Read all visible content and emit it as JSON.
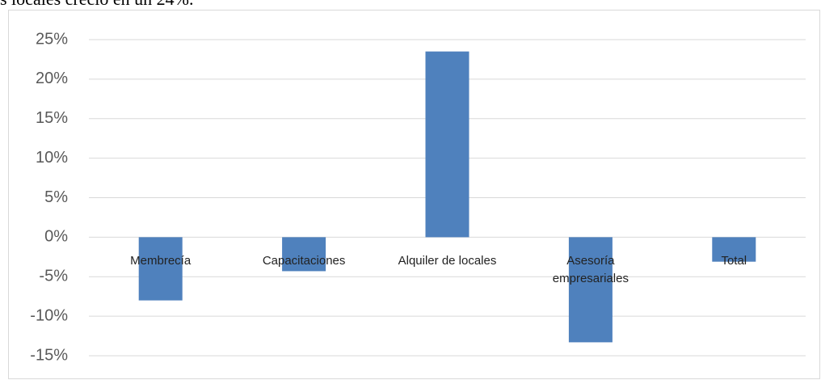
{
  "header_text": "s locales creció en un 24%.",
  "chart_data": {
    "type": "bar",
    "categories": [
      "Membrecía",
      "Capacitaciones",
      "Alquiler de locales",
      "Asesoría empresariales",
      "Total"
    ],
    "values": [
      -8,
      -4.3,
      23.5,
      -13.3,
      -3.1
    ],
    "color": "#4f81bd",
    "ylim": [
      -15,
      25
    ],
    "yticks": [
      {
        "value": -15,
        "label": "-15%"
      },
      {
        "value": -10,
        "label": "-10%"
      },
      {
        "value": -5,
        "label": "-5%"
      },
      {
        "value": 0,
        "label": "0%"
      },
      {
        "value": 5,
        "label": "5%"
      },
      {
        "value": 10,
        "label": "10%"
      },
      {
        "value": 15,
        "label": "15%"
      },
      {
        "value": 20,
        "label": "20%"
      },
      {
        "value": 25,
        "label": "25%"
      }
    ],
    "grid": true
  }
}
